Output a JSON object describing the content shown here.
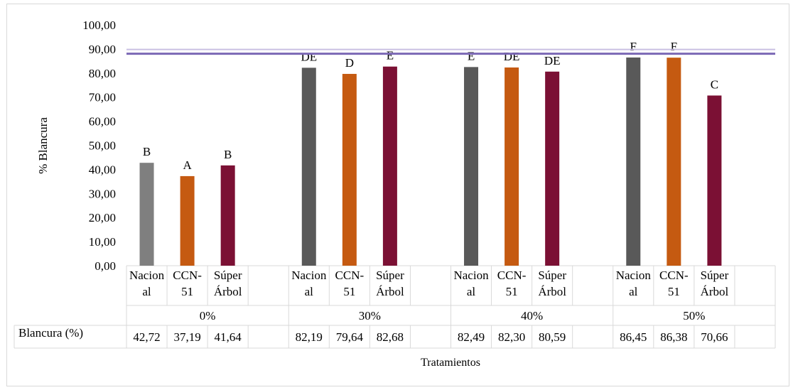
{
  "chart_data": {
    "type": "bar",
    "title": "",
    "ylabel": "% Blancura",
    "xlabel": "Tratamientos",
    "ylim": [
      0,
      100
    ],
    "yticks": [
      "0,00",
      "10,00",
      "20,00",
      "30,00",
      "40,00",
      "50,00",
      "60,00",
      "70,00",
      "80,00",
      "90,00",
      "100,00"
    ],
    "grid": false,
    "reference_line": {
      "value": 88,
      "color": "#7b68b5"
    },
    "table_row_label": "Blancura (%)",
    "groups": [
      {
        "label": "0%",
        "bars": [
          {
            "category_lines": [
              "Nacion",
              "al"
            ],
            "value": 42.72,
            "value_text": "42,72",
            "letter": "B",
            "color": "#7f7f7f"
          },
          {
            "category_lines": [
              "CCN-",
              "51"
            ],
            "value": 37.19,
            "value_text": "37,19",
            "letter": "A",
            "color": "#c55a11"
          },
          {
            "category_lines": [
              "Súper",
              "Árbol"
            ],
            "value": 41.64,
            "value_text": "41,64",
            "letter": "B",
            "color": "#7b1034"
          }
        ]
      },
      {
        "label": "30%",
        "bars": [
          {
            "category_lines": [
              "Nacion",
              "al"
            ],
            "value": 82.19,
            "value_text": "82,19",
            "letter": "DE",
            "color": "#595959"
          },
          {
            "category_lines": [
              "CCN-",
              "51"
            ],
            "value": 79.64,
            "value_text": "79,64",
            "letter": "D",
            "color": "#c55a11"
          },
          {
            "category_lines": [
              "Súper",
              "Árbol"
            ],
            "value": 82.68,
            "value_text": "82,68",
            "letter": "E",
            "color": "#7b1034"
          }
        ]
      },
      {
        "label": "40%",
        "bars": [
          {
            "category_lines": [
              "Nacion",
              "al"
            ],
            "value": 82.49,
            "value_text": "82,49",
            "letter": "E",
            "color": "#595959"
          },
          {
            "category_lines": [
              "CCN-",
              "51"
            ],
            "value": 82.3,
            "value_text": "82,30",
            "letter": "DE",
            "color": "#c55a11"
          },
          {
            "category_lines": [
              "Súper",
              "Árbol"
            ],
            "value": 80.59,
            "value_text": "80,59",
            "letter": "DE",
            "color": "#7b1034"
          }
        ]
      },
      {
        "label": "50%",
        "bars": [
          {
            "category_lines": [
              "Nacion",
              "al"
            ],
            "value": 86.45,
            "value_text": "86,45",
            "letter": "F",
            "color": "#595959"
          },
          {
            "category_lines": [
              "CCN-",
              "51"
            ],
            "value": 86.38,
            "value_text": "86,38",
            "letter": "F",
            "color": "#c55a11"
          },
          {
            "category_lines": [
              "Súper",
              "Árbol"
            ],
            "value": 70.66,
            "value_text": "70,66",
            "letter": "C",
            "color": "#7b1034"
          }
        ]
      }
    ]
  }
}
